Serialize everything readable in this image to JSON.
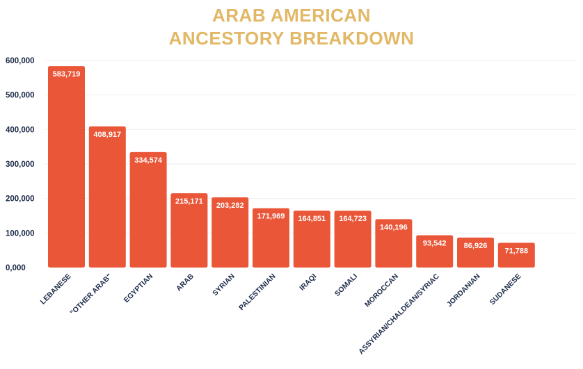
{
  "title_line1": "ARAB AMERICAN",
  "title_line2": "ANCESTORY BREAKDOWN",
  "colors": {
    "bar": "#E95638",
    "title": "#E2B866",
    "axis_text": "#1B2A48",
    "grid": "#EEEEEE",
    "label_text": "#FFFFFF"
  },
  "chart_data": {
    "type": "bar",
    "title": "ARAB AMERICAN ANCESTORY BREAKDOWN",
    "xlabel": "",
    "ylabel": "",
    "ylim": [
      0,
      600000
    ],
    "yticks": [
      0,
      100000,
      200000,
      300000,
      400000,
      500000,
      600000
    ],
    "ytick_labels": [
      "0,000",
      "100,000",
      "200,000",
      "300,000",
      "400,000",
      "500,000",
      "600,000"
    ],
    "grid": true,
    "categories": [
      "LEBANESE",
      "\"OTHER ARAB\"",
      "EGYPTIAN",
      "ARAB",
      "SYRIAN",
      "PALESTINIAN",
      "IRAQI",
      "SOMALI",
      "MOROCCAN",
      "ASSYRIAN/CHALDEAN/SYRIAC",
      "JORDANIAN",
      "SUDANESE"
    ],
    "values": [
      583719,
      408917,
      334574,
      215171,
      203282,
      171969,
      164851,
      164723,
      140196,
      93542,
      86926,
      71788
    ],
    "value_labels": [
      "583,719",
      "408,917",
      "334,574",
      "215,171",
      "203,282",
      "171,969",
      "164,851",
      "164,723",
      "140,196",
      "93,542",
      "86,926",
      "71,788"
    ]
  }
}
